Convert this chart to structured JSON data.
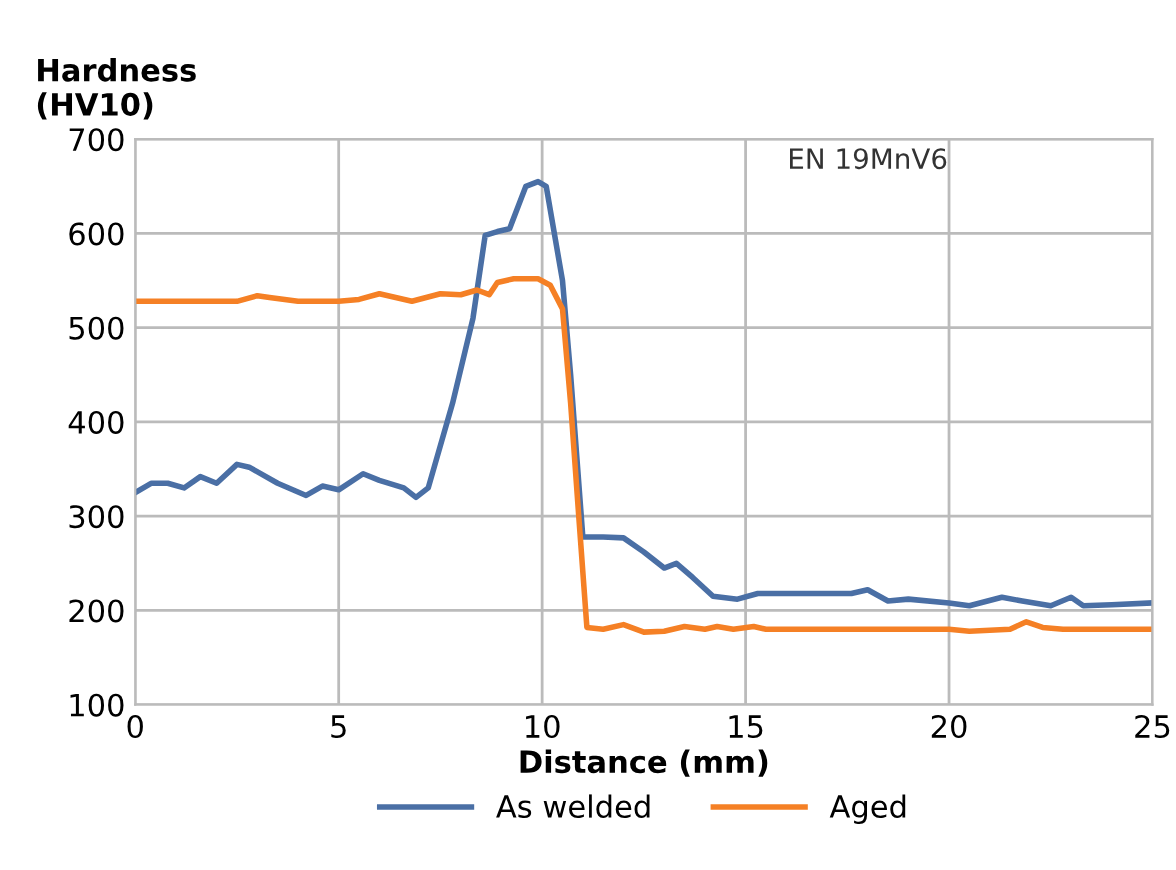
{
  "chart_data": {
    "type": "line",
    "ylabel": "Hardness\n(HV10)",
    "xlabel": "Distance (mm)",
    "xlim": [
      0,
      25
    ],
    "xticks": [
      0,
      5,
      10,
      15,
      20,
      25
    ],
    "ylim": [
      100,
      700
    ],
    "yticks": [
      100,
      200,
      300,
      400,
      500,
      600,
      700
    ],
    "grid": true,
    "legend": "bottom",
    "marker": "none",
    "line_style": "solid",
    "annotations": [
      "EN 19MnV6"
    ],
    "series": [
      {
        "name": "As welded",
        "color": "#4a6fa5",
        "x": [
          0,
          0.4,
          0.8,
          1.2,
          1.6,
          2.0,
          2.5,
          2.8,
          3.5,
          4.2,
          4.6,
          5.0,
          5.6,
          6.0,
          6.6,
          6.9,
          7.2,
          7.8,
          8.3,
          8.6,
          8.9,
          9.2,
          9.6,
          9.9,
          10.1,
          10.5,
          10.7,
          11.0,
          11.5,
          12.0,
          12.5,
          13.0,
          13.3,
          13.7,
          14.2,
          14.8,
          15.3,
          16,
          17,
          17.6,
          18,
          18.5,
          19,
          20,
          20.5,
          21.3,
          21.8,
          22.5,
          23,
          23.3,
          24,
          25
        ],
        "values": [
          325,
          335,
          335,
          330,
          342,
          335,
          355,
          352,
          335,
          322,
          332,
          328,
          345,
          338,
          330,
          320,
          330,
          420,
          510,
          598,
          602,
          605,
          650,
          655,
          650,
          550,
          450,
          278,
          278,
          277,
          262,
          245,
          250,
          235,
          215,
          212,
          218,
          218,
          218,
          218,
          222,
          210,
          212,
          208,
          205,
          214,
          210,
          205,
          214,
          205,
          206,
          208
        ]
      },
      {
        "name": "Aged",
        "color": "#f58025",
        "x": [
          0,
          2,
          2.5,
          3,
          3.3,
          4,
          5,
          5.5,
          6,
          6.8,
          7.5,
          8,
          8.4,
          8.7,
          8.9,
          9.3,
          9.9,
          10.2,
          10.5,
          10.7,
          10.9,
          11.1,
          11.5,
          12,
          12.5,
          13,
          13.5,
          14,
          14.3,
          14.7,
          15.2,
          15.5,
          17,
          20,
          20.5,
          21.5,
          21.9,
          22.3,
          22.8,
          25
        ],
        "values": [
          528,
          528,
          528,
          534,
          532,
          528,
          528,
          530,
          536,
          528,
          536,
          535,
          540,
          535,
          548,
          552,
          552,
          545,
          520,
          420,
          300,
          182,
          180,
          185,
          177,
          178,
          183,
          180,
          183,
          180,
          183,
          180,
          180,
          180,
          178,
          180,
          188,
          182,
          180,
          180
        ]
      }
    ]
  }
}
